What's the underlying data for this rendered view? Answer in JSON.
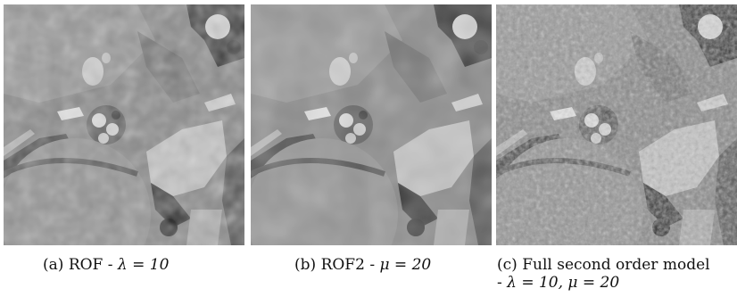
{
  "figure": {
    "panels": [
      {
        "id": "a",
        "tag": "(a)",
        "method": "ROF",
        "sep": "-",
        "params": "λ = 10",
        "image": "grayscale image: ROF denoised result"
      },
      {
        "id": "b",
        "tag": "(b)",
        "method": "ROF2",
        "sep": "-",
        "params": "μ = 20",
        "image": "grayscale image: ROF2 denoised result (smoother)"
      },
      {
        "id": "c",
        "tag": "(c)",
        "method": "Full second order model",
        "sep": "-",
        "params": "λ = 10, μ = 20",
        "image": "grayscale image: full second order model result (noisier texture)"
      }
    ]
  }
}
